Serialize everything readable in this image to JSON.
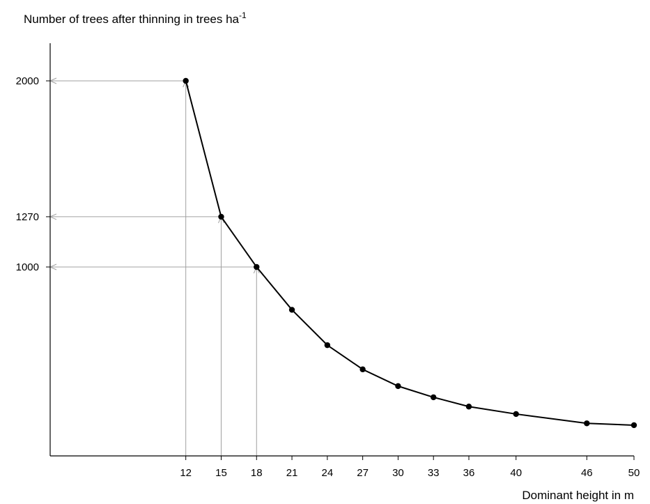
{
  "chart_data": {
    "type": "line",
    "ylabel": "Number of trees after thinning in trees ha",
    "ylabel_superscript": "-1",
    "xlabel": "Dominant height in m",
    "x_ticks": [
      "12",
      "15",
      "18",
      "21",
      "24",
      "27",
      "30",
      "33",
      "36",
      "40",
      "46",
      "50"
    ],
    "y_ticks": [
      "2000",
      "1270",
      "1000"
    ],
    "xlim": [
      0.5,
      50
    ],
    "ylim": [
      0,
      2200
    ],
    "grid": false,
    "series": [
      {
        "x": [
          12,
          15,
          18,
          21,
          24,
          27,
          30,
          33,
          36,
          40,
          46,
          50
        ],
        "y": [
          2000,
          1270,
          1000,
          770,
          580,
          450,
          360,
          300,
          250,
          210,
          160,
          150
        ]
      }
    ],
    "guides": [
      {
        "x": 12,
        "y": 2000
      },
      {
        "x": 15,
        "y": 1270
      },
      {
        "x": 18,
        "y": 1000
      }
    ],
    "colors": {
      "line": "#000000",
      "guide": "#a0a0a0",
      "axis": "#000000"
    }
  }
}
